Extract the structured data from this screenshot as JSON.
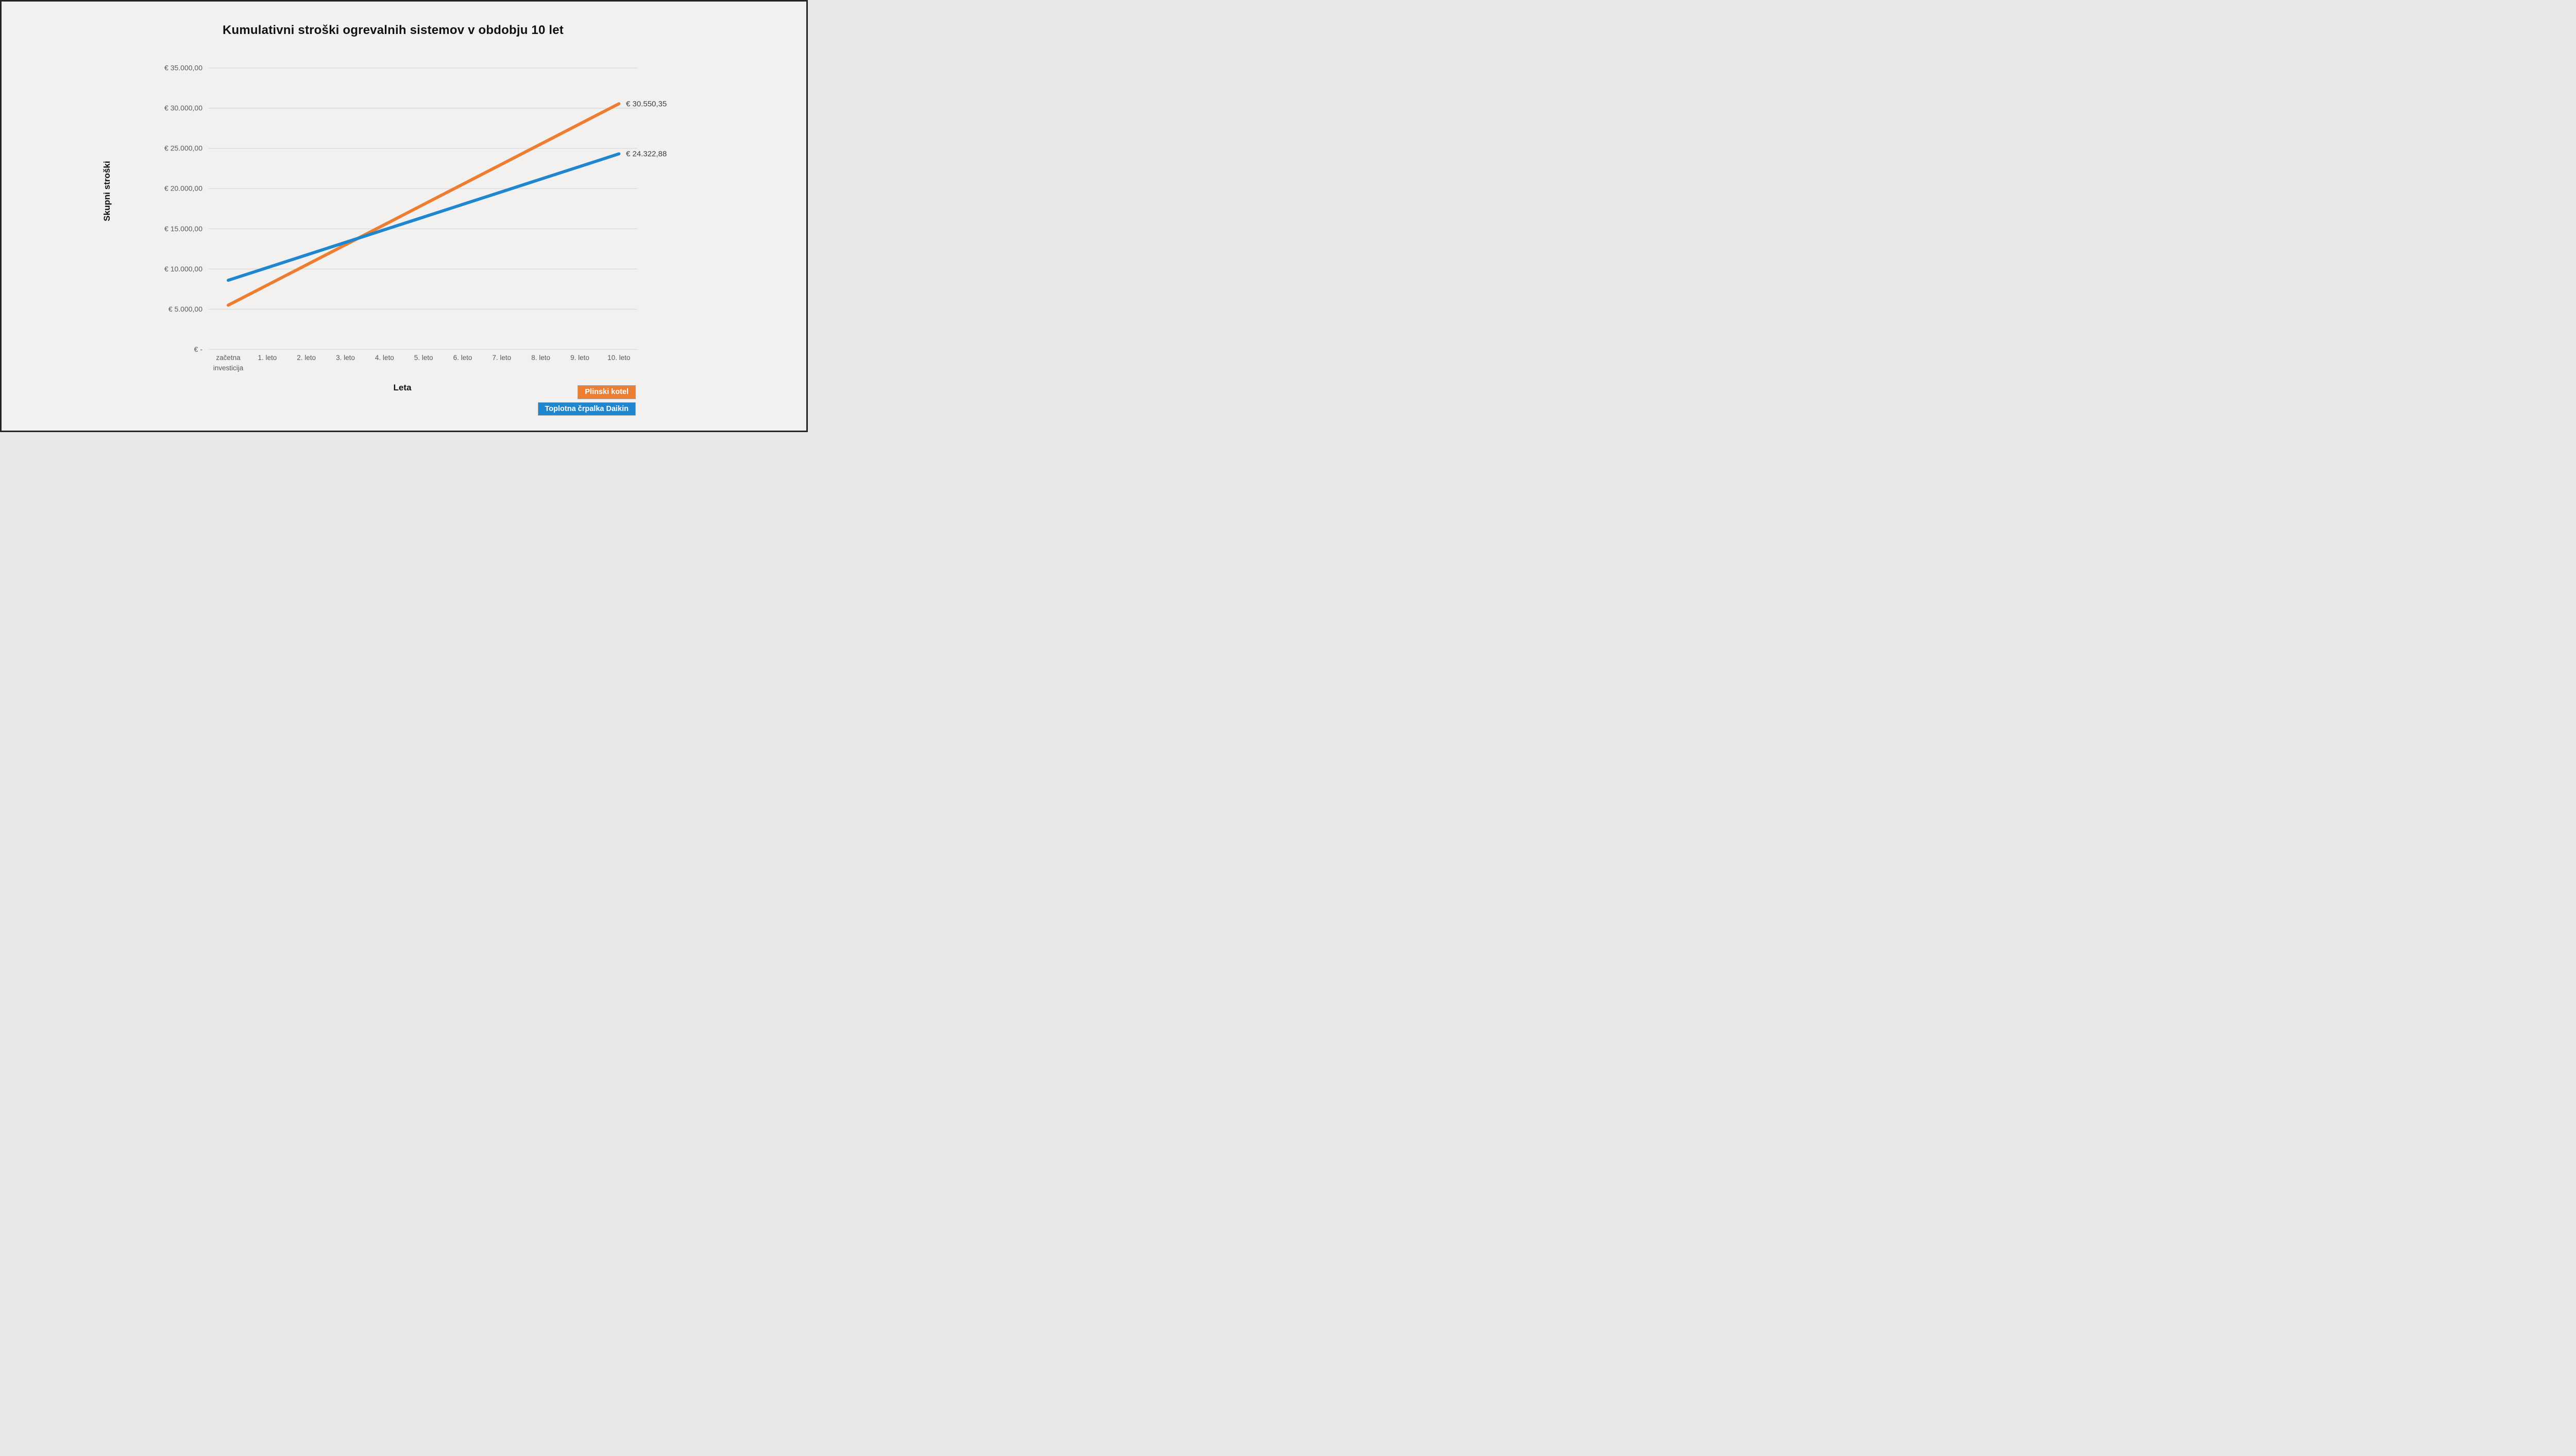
{
  "window": {
    "background": "#F2F1F0",
    "frame_border_color": "#262626"
  },
  "chart_data": {
    "type": "line",
    "title": "Kumulativni stroški ogrevalnih sistemov v obdobju 10 let",
    "xlabel": "Leta",
    "ylabel": "Skupni stroški",
    "categories": [
      "začetna investicija",
      "1. leto",
      "2. leto",
      "3. leto",
      "4. leto",
      "5. leto",
      "6. leto",
      "7. leto",
      "8. leto",
      "9. leto",
      "10. leto"
    ],
    "y_axis": {
      "min": 0,
      "max": 35000,
      "tick_step": 5000,
      "ticks": [
        {
          "value": 0,
          "label": "€ -"
        },
        {
          "value": 5000,
          "label": "€ 5.000,00"
        },
        {
          "value": 10000,
          "label": "€ 10.000,00"
        },
        {
          "value": 15000,
          "label": "€ 15.000,00"
        },
        {
          "value": 20000,
          "label": "€ 20.000,00"
        },
        {
          "value": 25000,
          "label": "€ 25.000,00"
        },
        {
          "value": 30000,
          "label": "€ 30.000,00"
        },
        {
          "value": 35000,
          "label": "€ 35.000,00"
        }
      ]
    },
    "grid": "horizontal",
    "legend_position": "bottom-right",
    "series": [
      {
        "name": "Plinski kotel",
        "color": "#ED7D31",
        "values": [
          5500.0,
          8005.04,
          10510.07,
          13015.11,
          15520.14,
          18025.18,
          20530.21,
          23035.25,
          25540.28,
          28045.32,
          30550.35
        ],
        "end_label": "€ 30.550,35"
      },
      {
        "name": "Toplotna črpalka Daikin",
        "color": "#1E87D0",
        "values": [
          8600.0,
          10172.29,
          11744.58,
          13316.86,
          14889.15,
          16461.44,
          18033.73,
          19606.02,
          21178.3,
          22750.59,
          24322.88
        ],
        "end_label": "€ 24.322,88"
      }
    ],
    "styles": {
      "gridline_color": "#D9D9D9",
      "tick_label_color": "#595959",
      "data_label_color": "#3F3F3F"
    }
  }
}
